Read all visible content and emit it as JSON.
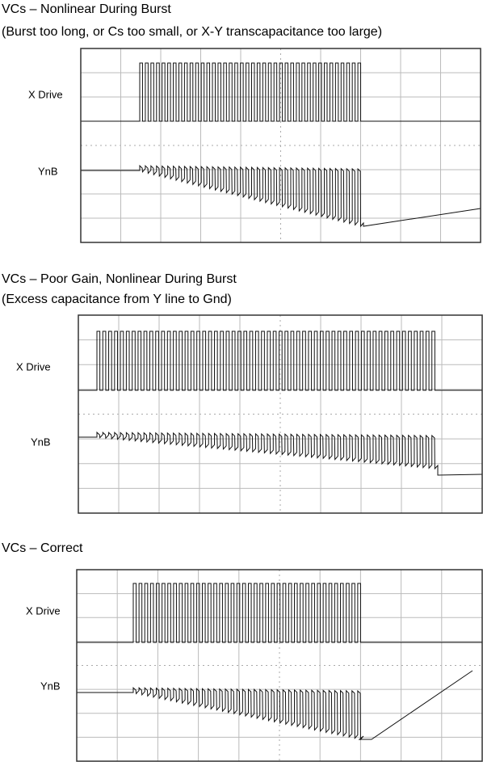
{
  "panels": [
    {
      "title": "VCs – Nonlinear During Burst",
      "subtitle": "(Burst too long, or Cs too small, or X-Y transcapacitance too large)",
      "x_label": "X Drive",
      "y_label": "YnB"
    },
    {
      "title": "VCs – Poor Gain, Nonlinear During Burst",
      "subtitle": "(Excess capacitance from Y line to Gnd)",
      "x_label": "X Drive",
      "y_label": "YnB"
    },
    {
      "title": "VCs – Correct",
      "x_label": "X Drive",
      "y_label": "YnB"
    }
  ]
}
